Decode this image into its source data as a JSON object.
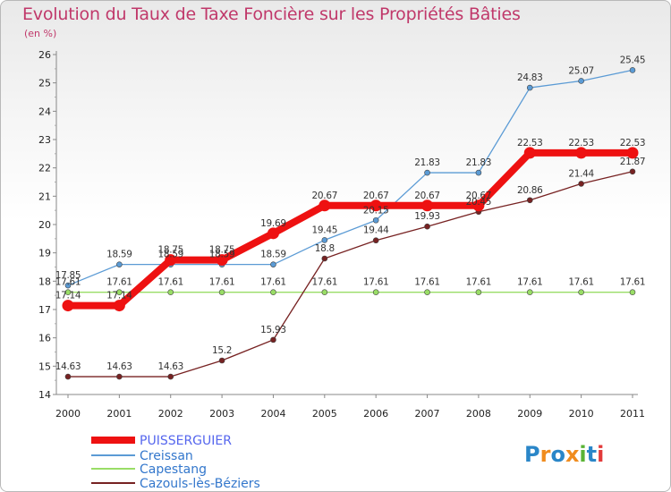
{
  "title": "Evolution du Taux de Taxe Foncière sur les Propriétés Bâties",
  "subtitle": "(en %)",
  "logo": "Proxiti",
  "chart_data": {
    "type": "line",
    "title": "Evolution du Taux de Taxe Foncière sur les Propriétés Bâties",
    "subtitle": "(en %)",
    "x": [
      "2000",
      "2001",
      "2002",
      "2003",
      "2004",
      "2005",
      "2006",
      "2007",
      "2008",
      "2009",
      "2010",
      "2011"
    ],
    "ylim": [
      14,
      26
    ],
    "yticks": [
      14,
      15,
      16,
      17,
      18,
      19,
      20,
      21,
      22,
      23,
      24,
      25,
      26
    ],
    "grid": false,
    "legend_position": "bottom-left",
    "series": [
      {
        "name": "PUISSERGUIER",
        "color": "#ee1111",
        "text_color": "#5566ee",
        "values": [
          17.14,
          17.14,
          18.75,
          18.75,
          19.69,
          20.67,
          20.67,
          20.67,
          20.67,
          22.53,
          22.53,
          22.53
        ],
        "labels": [
          "17.14",
          "17.14",
          "18.75",
          "18.75",
          "19.69",
          "20.67",
          "20.67",
          "20.67",
          "20.67",
          "22.53",
          "22.53",
          "22.53"
        ]
      },
      {
        "name": "Creissan",
        "color": "#5b9bd5",
        "text_color": "#3377cc",
        "values": [
          17.85,
          18.59,
          18.59,
          18.59,
          18.59,
          19.45,
          20.15,
          21.83,
          21.83,
          24.83,
          25.07,
          25.45
        ],
        "labels": [
          "17.85",
          "18.59",
          "18.59",
          "18.59",
          "18.59",
          "19.45",
          "20.15",
          "21.83",
          "21.83",
          "24.83",
          "25.07",
          "25.45"
        ]
      },
      {
        "name": "Capestang",
        "color": "#99dd66",
        "text_color": "#3377cc",
        "values": [
          17.61,
          17.61,
          17.61,
          17.61,
          17.61,
          17.61,
          17.61,
          17.61,
          17.61,
          17.61,
          17.61,
          17.61
        ],
        "labels": [
          "17.61",
          "17.61",
          "17.61",
          "17.61",
          "17.61",
          "17.61",
          "17.61",
          "17.61",
          "17.61",
          "17.61",
          "17.61",
          "17.61"
        ]
      },
      {
        "name": "Cazouls-lès-Béziers",
        "color": "#772222",
        "text_color": "#3377cc",
        "values": [
          14.63,
          14.63,
          14.63,
          15.2,
          15.93,
          18.8,
          19.44,
          19.93,
          20.45,
          20.86,
          21.44,
          21.87
        ],
        "labels": [
          "14.63",
          "14.63",
          "14.63",
          "15.2",
          "15.93",
          "18.8",
          "19.44",
          "19.93",
          "20.45",
          "20.86",
          "21.44",
          "21.87"
        ]
      }
    ]
  }
}
